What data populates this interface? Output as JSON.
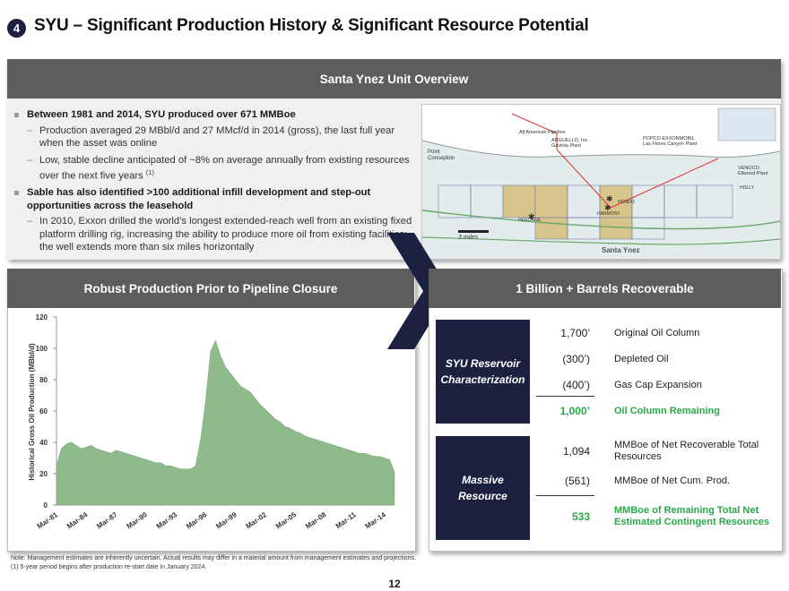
{
  "slide": {
    "number": "4",
    "title": "SYU – Significant Production History & Significant Resource Potential"
  },
  "overview": {
    "header": "Santa Ynez Unit Overview",
    "bullets": [
      {
        "text": "Between 1981 and 2014, SYU produced over 671 MMBoe",
        "subs": [
          "Production averaged 29 MBbl/d and 27 MMcf/d in 2014 (gross), the last full year when the asset was online",
          "Low, stable decline anticipated of ~8% on average annually from existing resources over the next five years"
        ],
        "sub_footnote": "(1)"
      },
      {
        "text": "Sable has also identified >100 additional infill development and step-out opportunities across the leasehold",
        "subs": [
          "In 2010, Exxon drilled the world’s longest extended-reach well from an existing fixed platform drilling rig, increasing the ability to produce more oil from existing facilities; the well extends more than six miles horizontally"
        ]
      }
    ]
  },
  "map": {
    "labels": {
      "pipeline": "All American Pipeline",
      "arguello": "ARGUELLO, Inc.",
      "gaviota": "Gaviota Plant",
      "popco": "POPCO  EXXONMOBIL",
      "las_flores": "Las Flores Canyon Plant",
      "point": "Point",
      "conception": "Conception",
      "venoco": "VENOCO",
      "ellwood": "Ellwood Plant",
      "hondo": "HONDO",
      "harmony": "HARMONY",
      "heritage": "HERITAGE",
      "holly": "HOLLY",
      "scale": "3 miles",
      "santa_ynez": "Santa Ynez"
    }
  },
  "production": {
    "header": "Robust Production Prior to Pipeline Closure"
  },
  "chart_data": {
    "type": "area",
    "title": "",
    "xlabel": "",
    "ylabel": "Historical Gross Oil Production (MBbl/d)",
    "ylim": [
      0,
      120
    ],
    "yticks": [
      0,
      20,
      40,
      60,
      80,
      100,
      120
    ],
    "x_ticks": [
      "Mar-81",
      "Mar-84",
      "Mar-87",
      "Mar-90",
      "Mar-93",
      "Mar-96",
      "Mar-99",
      "Mar-02",
      "Mar-05",
      "Mar-08",
      "Mar-11",
      "Mar-14"
    ],
    "series": [
      {
        "name": "",
        "color": "#8fba8c",
        "x_years": [
          1981,
          1981.5,
          1982,
          1982.5,
          1983,
          1983.5,
          1984,
          1984.5,
          1985,
          1985.5,
          1986,
          1986.5,
          1987,
          1987.5,
          1988,
          1988.5,
          1989,
          1989.5,
          1990,
          1990.5,
          1991,
          1991.5,
          1992,
          1992.5,
          1993,
          1993.5,
          1994,
          1994.5,
          1995,
          1995.5,
          1996,
          1996.5,
          1997,
          1997.5,
          1998,
          1998.5,
          1999,
          1999.5,
          2000,
          2000.5,
          2001,
          2001.5,
          2002,
          2002.5,
          2003,
          2003.5,
          2004,
          2004.5,
          2005,
          2005.5,
          2006,
          2006.5,
          2007,
          2007.5,
          2008,
          2008.5,
          2009,
          2009.5,
          2010,
          2010.5,
          2011,
          2011.5,
          2012,
          2012.5,
          2013,
          2013.5,
          2014,
          2014.5,
          2015
        ],
        "values": [
          25,
          36,
          39,
          40,
          38,
          36,
          37,
          38,
          36,
          35,
          34,
          33,
          35,
          34,
          33,
          32,
          31,
          30,
          29,
          28,
          27,
          27,
          25,
          25,
          24,
          23,
          23,
          23,
          25,
          42,
          66,
          98,
          105,
          95,
          88,
          84,
          80,
          76,
          74,
          72,
          68,
          64,
          61,
          58,
          55,
          53,
          50,
          49,
          47,
          46,
          44,
          43,
          42,
          41,
          40,
          39,
          38,
          37,
          36,
          35,
          34,
          33,
          33,
          32,
          31,
          31,
          30,
          29,
          21
        ]
      }
    ]
  },
  "resources": {
    "header": "1 Billion + Barrels Recoverable",
    "box1_line1": "SYU Reservoir",
    "box1_line2": "Characterization",
    "box2_line1": "Massive",
    "box2_line2": "Resource",
    "rows1": [
      {
        "value": "1,700’",
        "label": "Original Oil Column"
      },
      {
        "value": "(300’)",
        "label": "Depleted Oil"
      },
      {
        "value": "(400’)",
        "label": "Gas Cap Expansion"
      },
      {
        "value": "1,000’",
        "label": "Oil Column Remaining"
      }
    ],
    "rows2": [
      {
        "value": "1,094",
        "label": "MMBoe of Net Recoverable Total Resources"
      },
      {
        "value": "(561)",
        "label": "MMBoe of Net Cum. Prod."
      },
      {
        "value": "533",
        "label": "MMBoe of Remaining Total Net Estimated Contingent Resources"
      }
    ],
    "highlight_color": "#2aa84a"
  },
  "footnote": {
    "line1": "Note: Management estimates are inherently uncertain. Actual results may differ in a material amount from management estimates and projections.",
    "line2": "(1)   5-year period begins after production re-start date in January 2024."
  },
  "page_number": "12"
}
